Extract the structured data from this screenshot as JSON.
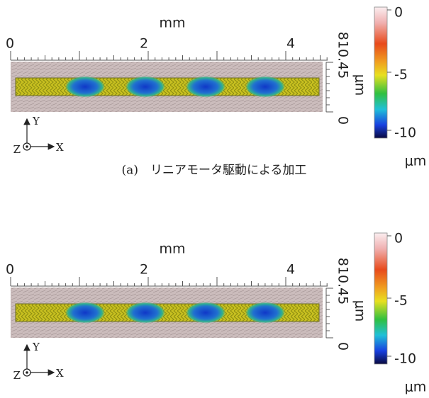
{
  "panels": [
    {
      "x_axis": {
        "label": "mm",
        "ticks": [
          "0",
          "2",
          "4"
        ]
      },
      "y_axis": {
        "label": "μm",
        "ticks": [
          "810.45",
          "0"
        ]
      },
      "colorbar": {
        "ticks": [
          "0",
          "-5",
          "-10"
        ],
        "unit": "μm"
      },
      "triad": {
        "y": "Y",
        "x": "X",
        "z": "Z"
      },
      "caption": "(a)　リニアモータ駆動による加工"
    },
    {
      "x_axis": {
        "label": "mm",
        "ticks": [
          "0",
          "2",
          "4"
        ]
      },
      "y_axis": {
        "label": "μm",
        "ticks": [
          "810.45",
          "0"
        ]
      },
      "colorbar": {
        "ticks": [
          "0",
          "-5",
          "-10"
        ],
        "unit": "μm"
      },
      "triad": {
        "y": "Y",
        "x": "X",
        "z": "Z"
      }
    }
  ]
}
